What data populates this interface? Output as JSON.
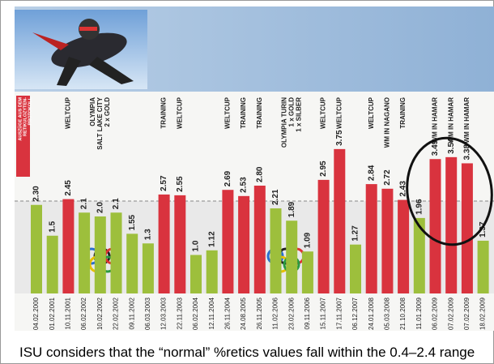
{
  "chart_data": {
    "type": "bar",
    "legend_box": [
      "AUSZÜGE AUS DEM",
      "RETIKULOZYTEN-",
      "PROTOKOLL"
    ],
    "categories": [
      "04.02.2000",
      "01.02.2001",
      "10.11.2001",
      "06.02.2002",
      "10.02.2002",
      "22.02.2002",
      "09.11.2002",
      "06.03.2003",
      "12.03.2003",
      "22.11.2003",
      "06.02.2004",
      "12.11.2004",
      "26.11.2004",
      "24.08.2005",
      "26.11.2005",
      "11.02.2006",
      "23.02.2006",
      "09.11.2006",
      "15.11.2007",
      "17.11.2007",
      "06.12.2007",
      "24.01.2008",
      "05.03.2008",
      "21.10.2008",
      "11.01.2009",
      "06.02.2009",
      "07.02.2009",
      "07.02.2009",
      "18.02.2009"
    ],
    "values": [
      2.3,
      1.5,
      2.45,
      2.1,
      2.0,
      2.1,
      1.55,
      1.3,
      2.57,
      2.55,
      1.0,
      1.12,
      2.69,
      2.53,
      2.8,
      2.21,
      1.89,
      1.09,
      2.95,
      3.75,
      1.27,
      2.84,
      2.72,
      2.43,
      1.96,
      3.49,
      3.54,
      3.38,
      1.37
    ],
    "value_labels": [
      "2.30",
      "1.5",
      "2.45",
      "2.1",
      "2.0",
      "2.1",
      "1.55",
      "1.3",
      "2.57",
      "2.55",
      "1.0",
      "1.12",
      "2.69",
      "2.53",
      "2.80",
      "2.21",
      "1.89",
      "1.09",
      "2.95",
      "3.75",
      "1.27",
      "2.84",
      "2.72",
      "2.43",
      "1.96",
      "3.49",
      "3.54",
      "3.38",
      "1.37"
    ],
    "colors": [
      "#9dbf3c",
      "#9dbf3c",
      "#d9333e",
      "#9dbf3c",
      "#9dbf3c",
      "#9dbf3c",
      "#9dbf3c",
      "#9dbf3c",
      "#d9333e",
      "#d9333e",
      "#9dbf3c",
      "#9dbf3c",
      "#d9333e",
      "#d9333e",
      "#d9333e",
      "#9dbf3c",
      "#9dbf3c",
      "#9dbf3c",
      "#d9333e",
      "#d9333e",
      "#9dbf3c",
      "#d9333e",
      "#d9333e",
      "#d9333e",
      "#9dbf3c",
      "#d9333e",
      "#d9333e",
      "#d9333e",
      "#9dbf3c"
    ],
    "events": [
      null,
      null,
      [
        "WELTCUP"
      ],
      null,
      [
        "OLYMPIA",
        "SALT LAKE CITY",
        "2 x GOLD"
      ],
      null,
      null,
      null,
      [
        "TRAINING"
      ],
      [
        "WELTCUP"
      ],
      null,
      null,
      [
        "WELTCUP"
      ],
      [
        "TRAINING"
      ],
      [
        "TRAINING"
      ],
      null,
      [
        "OLYMPIA TURIN",
        "1 x GOLD",
        "1 x SILBER"
      ],
      null,
      [
        "WELTCUP"
      ],
      [
        "WELTCUP"
      ],
      null,
      [
        "WELTCUP"
      ],
      [
        "WM IN NAGANO"
      ],
      [
        "TRAINING"
      ],
      null,
      [
        "WM IN HAMAR"
      ],
      [
        "WM IN HAMAR"
      ],
      [
        "WM IN HAMAR"
      ],
      null
    ],
    "reference_line": 2.4,
    "ylim": [
      0,
      3.9
    ]
  },
  "caption": "ISU considers that the “normal” %retics values fall within the 0.4–2.4 range"
}
